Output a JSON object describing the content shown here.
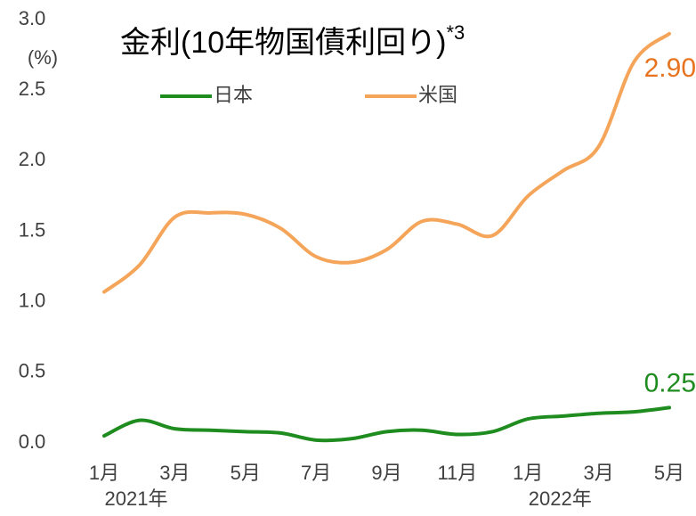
{
  "chart_data": {
    "type": "line",
    "title": "金利(10年物国債利回り)",
    "title_note": "*3",
    "ylabel": "(%)",
    "categories": [
      "1月",
      null,
      "3月",
      null,
      "5月",
      null,
      "7月",
      null,
      "9月",
      null,
      "11月",
      null,
      "1月",
      null,
      "3月",
      null,
      "5月"
    ],
    "year_labels": [
      {
        "at": 0,
        "label": "2021年"
      },
      {
        "at": 12,
        "label": "2022年"
      }
    ],
    "series": [
      {
        "name": "日本",
        "color": "#1e8c1e",
        "label_color": "#1e8c1e",
        "values": [
          0.05,
          0.16,
          0.1,
          0.09,
          0.08,
          0.07,
          0.02,
          0.03,
          0.08,
          0.09,
          0.06,
          0.08,
          0.17,
          0.19,
          0.21,
          0.22,
          0.25
        ],
        "value_labels": [
          null,
          null,
          null,
          null,
          null,
          null,
          null,
          null,
          null,
          null,
          null,
          null,
          null,
          null,
          null,
          null,
          "0.25"
        ]
      },
      {
        "name": "米国",
        "color": "#f5a55a",
        "label_color": "#e8731e",
        "values": [
          1.07,
          1.26,
          1.6,
          1.63,
          1.62,
          1.52,
          1.32,
          1.28,
          1.37,
          1.57,
          1.55,
          1.47,
          1.75,
          1.93,
          2.1,
          2.7,
          2.9
        ],
        "value_labels": [
          null,
          null,
          null,
          null,
          null,
          null,
          null,
          null,
          null,
          null,
          null,
          null,
          null,
          null,
          null,
          null,
          "2.90"
        ]
      }
    ],
    "ylim": [
      0,
      3
    ],
    "yticks": [
      {
        "value": 0,
        "label": "0.0"
      },
      0.5,
      {
        "value": 1,
        "label": "1.0"
      },
      1.5,
      {
        "value": 2,
        "label": "2.0"
      },
      2.5,
      {
        "value": 3,
        "label": "3.0"
      }
    ],
    "grid": false,
    "legend": "top"
  }
}
